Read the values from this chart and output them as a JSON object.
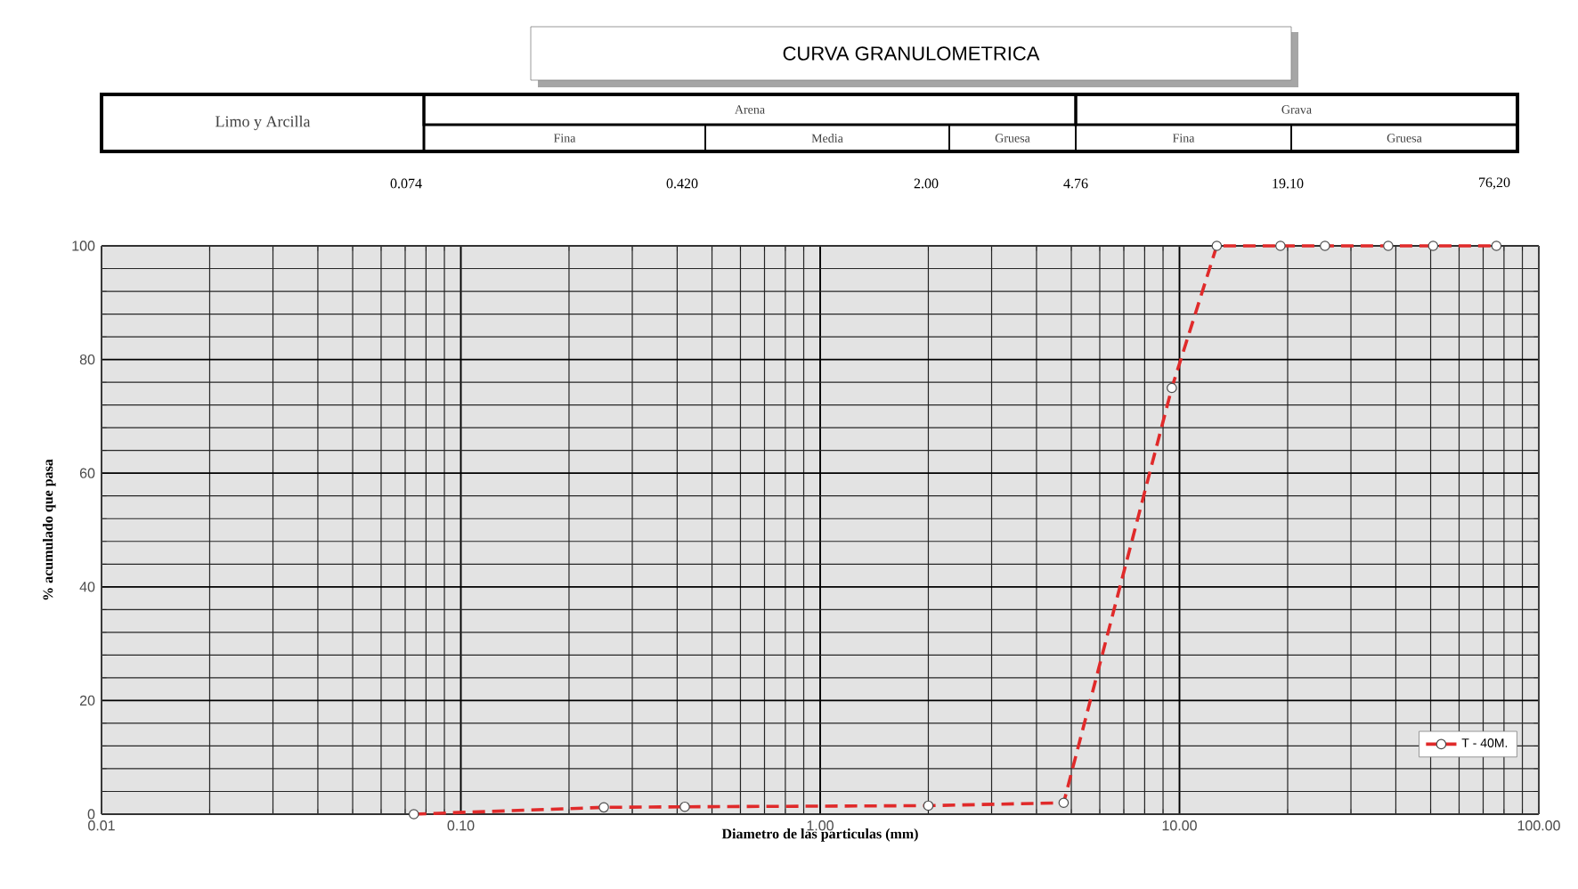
{
  "chart_data": {
    "type": "line",
    "title": "CURVA GRANULOMETRICA",
    "xlabel": "Diametro de las particulas (mm)",
    "ylabel": "% acumulado que pasa",
    "annotations": [
      "Limo y Arcilla",
      "Arena",
      "Grava",
      "Fina",
      "Media",
      "Gruesa",
      "Fina",
      "Gruesa",
      "0.074",
      "0.420",
      "2.00",
      "4.76",
      "19.10",
      "76,20"
    ],
    "log": "x",
    "xlim": [
      0.01,
      100
    ],
    "ylim": [
      0,
      100
    ],
    "xticks": [
      {
        "value": 0.01,
        "label": "0.01"
      },
      {
        "value": 0.1,
        "label": "0.10"
      },
      {
        "value": 1,
        "label": "1.00"
      },
      {
        "value": 10,
        "label": "10.00"
      },
      {
        "value": 100,
        "label": "100.00"
      }
    ],
    "yticks": [
      0,
      20,
      40,
      60,
      80,
      100
    ],
    "grid": true,
    "legend": "bottom right",
    "marker": "circle",
    "line_style": "dashed",
    "series": [
      {
        "name": "T - 40M.",
        "color": "#e02a2a",
        "x": [
          0.074,
          0.25,
          0.42,
          2.0,
          4.76,
          9.52,
          12.7,
          19.1,
          25.4,
          38.1,
          50.8,
          76.2
        ],
        "values": [
          0,
          1.2,
          1.3,
          1.5,
          2,
          75,
          100,
          100,
          100,
          100,
          100,
          100
        ]
      }
    ]
  }
}
